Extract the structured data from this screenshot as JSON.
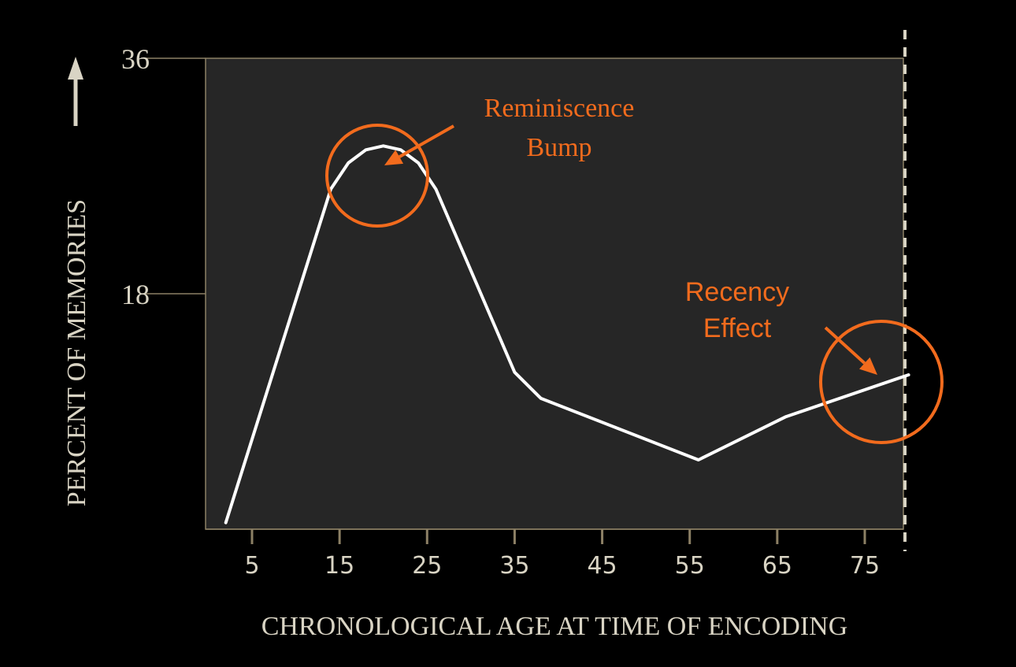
{
  "chart_data": {
    "type": "line",
    "xlabel": "CHRONOLOGICAL AGE AT TIME OF ENCODING",
    "ylabel": "PERCENT OF MEMORIES",
    "x_ticks": [
      "5",
      "15",
      "25",
      "35",
      "45",
      "55",
      "65",
      "75"
    ],
    "y_ticks": [
      "18",
      "36"
    ],
    "xlim": [
      0,
      80
    ],
    "ylim": [
      0,
      36
    ],
    "series": [
      {
        "x": [
          2,
          14,
          16,
          18,
          20,
          22,
          24,
          26,
          35,
          38,
          56,
          66,
          80
        ],
        "y": [
          0.5,
          26,
          28,
          29,
          29.3,
          29,
          28,
          26,
          12,
          10,
          5.3,
          8.6,
          11.8
        ]
      }
    ],
    "annotations": [
      {
        "text": [
          "Reminiscence",
          "Bump"
        ],
        "target_x": 20,
        "target_y": 27.3,
        "style": "serif"
      },
      {
        "text": [
          "Recency",
          "Effect"
        ],
        "target_x": 79,
        "target_y": 11.4,
        "style": "sans"
      }
    ],
    "colors": {
      "background": "#000000",
      "plot_area": "#262626",
      "frame": "#8c8065",
      "line": "#ffffff",
      "annotation": "#f26b1d",
      "text": "#d9d4c4"
    }
  }
}
